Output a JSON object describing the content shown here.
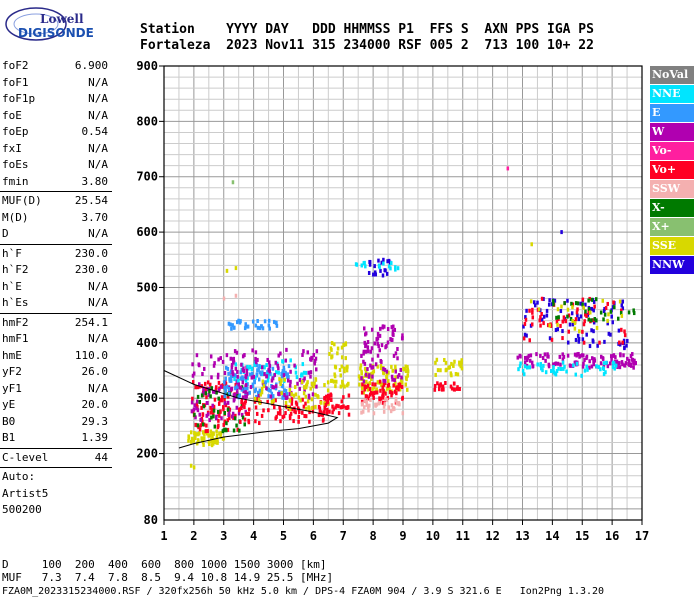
{
  "logo": {
    "line1": "Lowell",
    "line2": "DIGISONDE"
  },
  "header": {
    "line1": "Station    YYYY DAY   DDD HHMMSS P1  FFS S  AXN PPS IGA PS",
    "line2": "Fortaleza  2023 Nov11 315 234000 RSF 005 2  713 100 10+ 22"
  },
  "params": [
    {
      "label": "foF2",
      "value": "6.900"
    },
    {
      "label": "foF1",
      "value": "N/A"
    },
    {
      "label": "foF1p",
      "value": "N/A"
    },
    {
      "label": "foE",
      "value": "N/A"
    },
    {
      "label": "foEp",
      "value": "0.54"
    },
    {
      "label": "fxI",
      "value": "N/A"
    },
    {
      "label": "foEs",
      "value": "N/A"
    },
    {
      "label": "fmin",
      "value": "3.80"
    },
    {
      "sep": true
    },
    {
      "label": "MUF(D)",
      "value": "25.54"
    },
    {
      "label": "M(D)",
      "value": "3.70"
    },
    {
      "label": "D",
      "value": "N/A"
    },
    {
      "sep": true
    },
    {
      "label": "h`F",
      "value": "230.0"
    },
    {
      "label": "h`F2",
      "value": "230.0"
    },
    {
      "label": "h`E",
      "value": "N/A"
    },
    {
      "label": "h`Es",
      "value": "N/A"
    },
    {
      "sep": true
    },
    {
      "label": "hmF2",
      "value": "254.1"
    },
    {
      "label": "hmF1",
      "value": "N/A"
    },
    {
      "label": "hmE",
      "value": "110.0"
    },
    {
      "label": "yF2",
      "value": "26.0"
    },
    {
      "label": "yF1",
      "value": "N/A"
    },
    {
      "label": "yE",
      "value": "20.0"
    },
    {
      "label": "B0",
      "value": "29.3"
    },
    {
      "label": "B1",
      "value": "1.39"
    },
    {
      "sep": true
    },
    {
      "label": "C-level",
      "value": "44"
    },
    {
      "sep": true
    },
    {
      "text": "Auto:"
    },
    {
      "text": "Artist5"
    },
    {
      "text": "500200"
    }
  ],
  "legend": [
    {
      "label": "NoVal",
      "color": "#808080"
    },
    {
      "label": "NNE",
      "color": "#00e5ff"
    },
    {
      "label": "E",
      "color": "#3399ff"
    },
    {
      "label": "W",
      "color": "#b000b0"
    },
    {
      "label": "Vo-",
      "color": "#ff1f9f"
    },
    {
      "label": "Vo+",
      "color": "#ff0022"
    },
    {
      "label": "SSW",
      "color": "#f4b0b0"
    },
    {
      "label": "X-",
      "color": "#007a00"
    },
    {
      "label": "X+",
      "color": "#88c070"
    },
    {
      "label": "SSE",
      "color": "#d8d800"
    },
    {
      "label": "NNW",
      "color": "#2200dd"
    }
  ],
  "footer": {
    "line1": "D     100  200  400  600  800 1000 1500 3000 [km]",
    "line2": "MUF   7.3  7.4  7.8  8.5  9.4 10.8 14.9 25.5 [MHz]",
    "line3": "FZA0M_2023315234000.RSF / 320fx256h 50 kHz 5.0 km / DPS-4 FZA0M 904 / 3.9 S 321.6 E   Ion2Png 1.3.20"
  },
  "chart_data": {
    "type": "scatter",
    "title": "",
    "xlabel": "",
    "ylabel": "",
    "xlim": [
      1,
      17
    ],
    "ylim": [
      80,
      900
    ],
    "x_ticks": [
      1,
      2,
      3,
      4,
      5,
      6,
      7,
      8,
      9,
      10,
      11,
      12,
      13,
      14,
      15,
      16,
      17
    ],
    "y_ticks": [
      200,
      300,
      400,
      500,
      600,
      700,
      800,
      900
    ],
    "y_tick_labels": [
      "200",
      "300",
      "400",
      "500",
      "600",
      "700",
      "800",
      "900"
    ],
    "y_bottom_label": "80",
    "x_minor_step": 0.5,
    "y_minor_step": 20,
    "grid": true,
    "clusters": [
      {
        "x": [
          1.8,
          3.0
        ],
        "y": [
          215,
          240
        ],
        "color": "SSE",
        "n": 60
      },
      {
        "x": [
          1.9,
          3.5
        ],
        "y": [
          240,
          330
        ],
        "color": "Vo+",
        "n": 90
      },
      {
        "x": [
          1.9,
          3.8
        ],
        "y": [
          260,
          380
        ],
        "color": "W",
        "n": 90
      },
      {
        "x": [
          2.0,
          3.8
        ],
        "y": [
          240,
          320
        ],
        "color": "X-",
        "n": 40
      },
      {
        "x": [
          3.0,
          5.2
        ],
        "y": [
          300,
          360
        ],
        "color": "E",
        "n": 120
      },
      {
        "x": [
          3.3,
          5.8
        ],
        "y": [
          330,
          370
        ],
        "color": "NNE",
        "n": 40
      },
      {
        "x": [
          3.5,
          6.5
        ],
        "y": [
          255,
          300
        ],
        "color": "Vo+",
        "n": 90
      },
      {
        "x": [
          3.2,
          6.2
        ],
        "y": [
          300,
          390
        ],
        "color": "W",
        "n": 110
      },
      {
        "x": [
          3.0,
          4.8
        ],
        "y": [
          425,
          440
        ],
        "color": "E",
        "n": 30
      },
      {
        "x": [
          4.0,
          6.5
        ],
        "y": [
          280,
          340
        ],
        "color": "SSE",
        "n": 60
      },
      {
        "x": [
          6.2,
          7.2
        ],
        "y": [
          270,
          310
        ],
        "color": "Vo+",
        "n": 40
      },
      {
        "x": [
          6.5,
          7.2
        ],
        "y": [
          320,
          400
        ],
        "color": "SSE",
        "n": 40
      },
      {
        "x": [
          7.5,
          9.2
        ],
        "y": [
          310,
          360
        ],
        "color": "SSE",
        "n": 90
      },
      {
        "x": [
          7.6,
          9.0
        ],
        "y": [
          290,
          330
        ],
        "color": "Vo+",
        "n": 60
      },
      {
        "x": [
          7.6,
          9.0
        ],
        "y": [
          270,
          300
        ],
        "color": "SSW",
        "n": 40
      },
      {
        "x": [
          7.6,
          9.0
        ],
        "y": [
          330,
          430
        ],
        "color": "W",
        "n": 80
      },
      {
        "x": [
          7.8,
          8.6
        ],
        "y": [
          520,
          550
        ],
        "color": "NNW",
        "n": 20
      },
      {
        "x": [
          7.4,
          8.9
        ],
        "y": [
          530,
          545
        ],
        "color": "NNE",
        "n": 15
      },
      {
        "x": [
          10.0,
          10.9
        ],
        "y": [
          315,
          330
        ],
        "color": "Vo+",
        "n": 20
      },
      {
        "x": [
          10.0,
          11.0
        ],
        "y": [
          340,
          370
        ],
        "color": "SSE",
        "n": 25
      },
      {
        "x": [
          12.8,
          16.8
        ],
        "y": [
          355,
          380
        ],
        "color": "W",
        "n": 110
      },
      {
        "x": [
          12.8,
          16.2
        ],
        "y": [
          340,
          365
        ],
        "color": "NNE",
        "n": 50
      },
      {
        "x": [
          13.0,
          16.5
        ],
        "y": [
          390,
          480
        ],
        "color": "NNW",
        "n": 80
      },
      {
        "x": [
          13.0,
          16.5
        ],
        "y": [
          400,
          480
        ],
        "color": "Vo+",
        "n": 60
      },
      {
        "x": [
          13.5,
          16.8
        ],
        "y": [
          440,
          480
        ],
        "color": "X-",
        "n": 30
      },
      {
        "x": [
          13.2,
          16.5
        ],
        "y": [
          420,
          480
        ],
        "color": "SSE",
        "n": 20
      }
    ],
    "outliers": [
      {
        "x": 12.5,
        "y": 715,
        "color": "Vo-"
      },
      {
        "x": 14.3,
        "y": 600,
        "color": "NNW"
      },
      {
        "x": 3.3,
        "y": 690,
        "color": "X+"
      },
      {
        "x": 13.3,
        "y": 578,
        "color": "SSE"
      },
      {
        "x": 1.9,
        "y": 178,
        "color": "SSE"
      },
      {
        "x": 2.0,
        "y": 175,
        "color": "SSE"
      },
      {
        "x": 3.1,
        "y": 530,
        "color": "SSE"
      },
      {
        "x": 3.4,
        "y": 535,
        "color": "SSE"
      },
      {
        "x": 3.0,
        "y": 480,
        "color": "SSW"
      },
      {
        "x": 3.4,
        "y": 485,
        "color": "SSW"
      }
    ],
    "trace": [
      [
        1.0,
        350
      ],
      [
        2.0,
        325
      ],
      [
        3.5,
        300
      ],
      [
        4.5,
        290
      ],
      [
        5.5,
        280
      ],
      [
        6.0,
        275
      ],
      [
        6.8,
        265
      ],
      [
        6.5,
        255
      ],
      [
        5.5,
        245
      ],
      [
        4.5,
        240
      ],
      [
        3.0,
        230
      ],
      [
        2.0,
        218
      ],
      [
        1.5,
        210
      ]
    ]
  }
}
